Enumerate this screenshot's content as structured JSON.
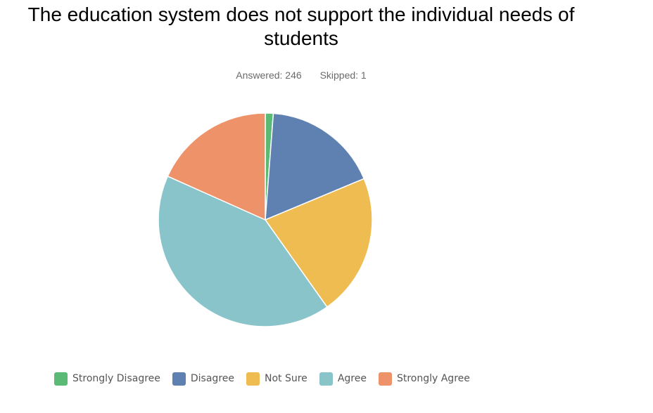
{
  "chart_data": {
    "type": "pie",
    "title": "The education system does not support the individual needs of students",
    "subtitle": {
      "answered": "Answered: 246",
      "skipped": "Skipped: 1"
    },
    "categories": [
      "Strongly Disagree",
      "Disagree",
      "Not Sure",
      "Agree",
      "Strongly Agree"
    ],
    "values": [
      1.2,
      17.5,
      21.5,
      41.5,
      18.3
    ],
    "colors": [
      "#5cba77",
      "#5f81b2",
      "#efbc51",
      "#88c4ca",
      "#ed9269"
    ],
    "legend_position": "bottom",
    "start_angle_deg": 0,
    "direction": "clockwise"
  }
}
